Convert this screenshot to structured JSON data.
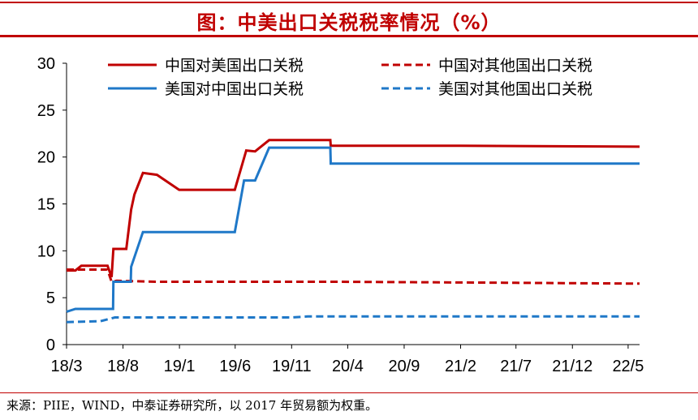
{
  "title": "图：中美出口关税税率情况（%）",
  "source": "来源：PIIE，WIND，中泰证券研究所，以 2017 年贸易额为权重。",
  "chart_data": {
    "type": "line",
    "title": "图：中美出口关税税率情况（%）",
    "xlabel": "",
    "ylabel": "",
    "ylim": [
      0,
      30
    ],
    "yticks": [
      0,
      5,
      10,
      15,
      20,
      25,
      30
    ],
    "xlim": [
      "2018-03",
      "2022-06"
    ],
    "xticks": [
      "18/3",
      "18/8",
      "19/1",
      "19/6",
      "19/11",
      "20/4",
      "20/9",
      "21/2",
      "21/7",
      "21/12",
      "22/5"
    ],
    "grid": false,
    "legend_position": "top",
    "series": [
      {
        "name": "中国对美国出口关税",
        "color": "#c00000",
        "style": "solid",
        "points": [
          [
            "2018-03-01",
            7.9
          ],
          [
            "2018-03-25",
            7.9
          ],
          [
            "2018-04-10",
            8.4
          ],
          [
            "2018-06-20",
            8.4
          ],
          [
            "2018-07-01",
            7.2
          ],
          [
            "2018-07-06",
            10.2
          ],
          [
            "2018-08-10",
            10.2
          ],
          [
            "2018-08-23",
            14.4
          ],
          [
            "2018-09-01",
            16.0
          ],
          [
            "2018-09-24",
            18.3
          ],
          [
            "2018-11-01",
            18.1
          ],
          [
            "2018-12-31",
            16.5
          ],
          [
            "2019-05-31",
            16.5
          ],
          [
            "2019-07-01",
            20.7
          ],
          [
            "2019-07-25",
            20.6
          ],
          [
            "2019-09-01",
            21.8
          ],
          [
            "2019-12-15",
            21.8
          ],
          [
            "2020-02-14",
            21.8
          ],
          [
            "2020-02-15",
            21.2
          ],
          [
            "2021-02-01",
            21.2
          ],
          [
            "2022-06-01",
            21.1
          ]
        ]
      },
      {
        "name": "中国对其他国出口关税",
        "color": "#c00000",
        "style": "dashed",
        "points": [
          [
            "2018-03-01",
            8.0
          ],
          [
            "2018-06-20",
            8.0
          ],
          [
            "2018-07-01",
            6.7
          ],
          [
            "2018-07-15",
            6.8
          ],
          [
            "2018-11-01",
            6.7
          ],
          [
            "2020-03-01",
            6.7
          ],
          [
            "2021-06-01",
            6.6
          ],
          [
            "2022-06-01",
            6.5
          ]
        ]
      },
      {
        "name": "美国对中国出口关税",
        "color": "#1f78c8",
        "style": "solid",
        "points": [
          [
            "2018-03-01",
            3.5
          ],
          [
            "2018-03-25",
            3.8
          ],
          [
            "2018-07-05",
            3.8
          ],
          [
            "2018-07-06",
            6.7
          ],
          [
            "2018-08-22",
            6.7
          ],
          [
            "2018-08-23",
            8.3
          ],
          [
            "2018-09-24",
            12.0
          ],
          [
            "2019-05-31",
            12.0
          ],
          [
            "2019-06-25",
            17.5
          ],
          [
            "2019-07-25",
            17.5
          ],
          [
            "2019-09-01",
            21.0
          ],
          [
            "2020-02-14",
            21.0
          ],
          [
            "2020-02-15",
            19.3
          ],
          [
            "2022-06-01",
            19.3
          ]
        ]
      },
      {
        "name": "美国对其他国出口关税",
        "color": "#1f78c8",
        "style": "dashed",
        "points": [
          [
            "2018-03-01",
            2.4
          ],
          [
            "2018-06-01",
            2.5
          ],
          [
            "2018-07-10",
            2.9
          ],
          [
            "2019-11-01",
            2.9
          ],
          [
            "2019-12-15",
            3.0
          ],
          [
            "2022-06-01",
            3.0
          ]
        ]
      }
    ]
  }
}
